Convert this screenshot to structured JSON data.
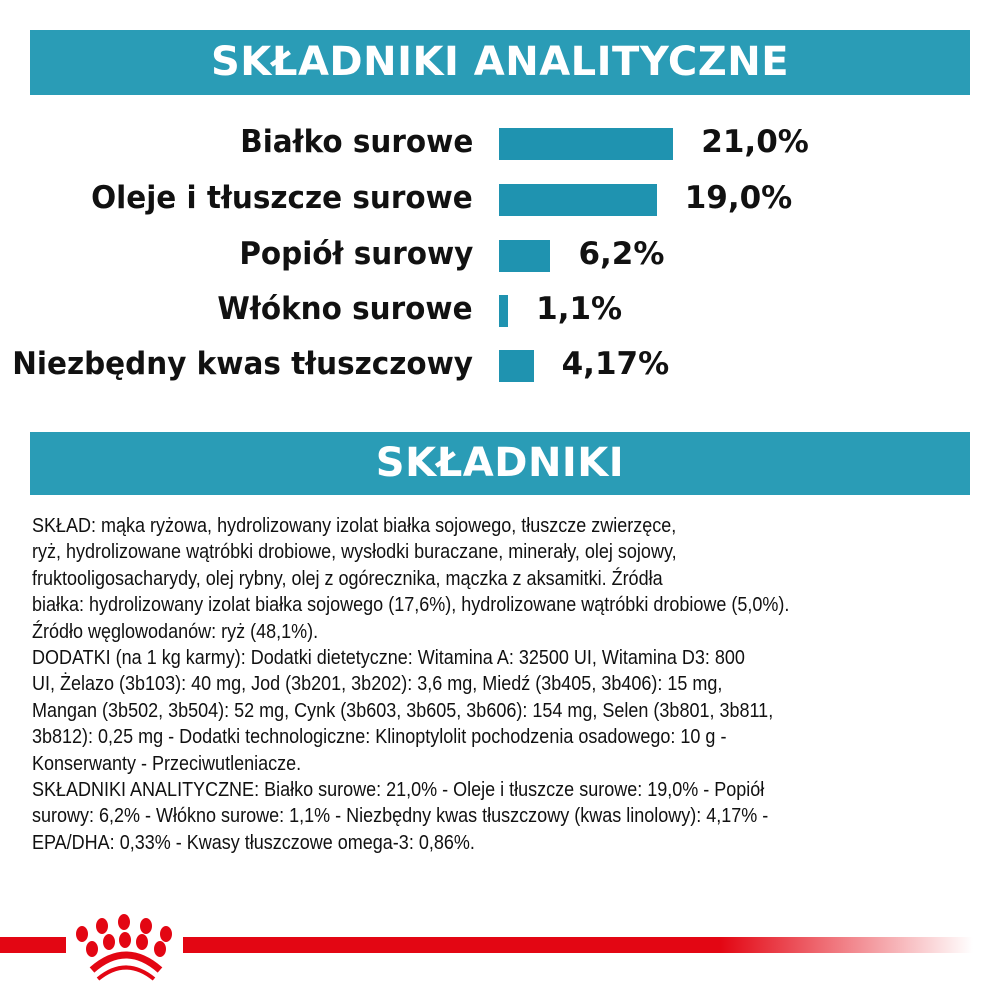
{
  "analytical": {
    "title": "SKŁADNIKI ANALITYCZNE"
  },
  "chart_data": {
    "type": "bar",
    "orientation": "horizontal",
    "categories": [
      "Białko surowe",
      "Oleje i tłuszcze surowe",
      "Popiół surowy",
      "Włókno surowe",
      "Niezbędny kwas tłuszczowy"
    ],
    "values": [
      21.0,
      19.0,
      6.2,
      1.1,
      4.17
    ],
    "value_labels": [
      "21,0%",
      "19,0%",
      "6,2%",
      "1,1%",
      "4,17%"
    ],
    "title": "SKŁADNIKI ANALITYCZNE",
    "grid": false,
    "bar_color": "#1f93b0"
  },
  "ingredients": {
    "title": "SKŁADNIKI",
    "lines": [
      "SKŁAD: mąka ryżowa, hydrolizowany izolat białka sojowego, tłuszcze zwierzęce,",
      "ryż, hydrolizowane wątróbki drobiowe, wysłodki buraczane, minerały, olej sojowy,",
      "fruktooligosacharydy, olej rybny, olej z ogórecznika, mączka z aksamitki. Źródła",
      "białka: hydrolizowany izolat białka sojowego (17,6%), hydrolizowane wątróbki drobiowe (5,0%).",
      "Źródło węglowodanów: ryż (48,1%).",
      "DODATKI (na 1 kg karmy): Dodatki dietetyczne: Witamina A: 32500 UI, Witamina D3: 800",
      "UI, Żelazo (3b103): 40 mg, Jod (3b201, 3b202): 3,6 mg, Miedź (3b405, 3b406): 15 mg,",
      "Mangan (3b502, 3b504): 52 mg, Cynk (3b603, 3b605, 3b606): 154 mg, Selen (3b801, 3b811,",
      "3b812): 0,25 mg - Dodatki technologiczne: Klinoptylolit pochodzenia osadowego: 10 g -",
      "Konserwanty - Przeciwutleniacze.",
      "SKŁADNIKI ANALITYCZNE: Białko surowe: 21,0% - Oleje i tłuszcze surowe: 19,0% - Popiół",
      "surowy: 6,2% - Włókno surowe: 1,1% - Niezbędny kwas tłuszczowy (kwas linolowy): 4,17% -",
      "EPA/DHA: 0,33% - Kwasy tłuszczowe omega-3: 0,86%."
    ]
  },
  "brand": {
    "logo": "royal-canin-crown-logo",
    "color": "#e30613"
  }
}
